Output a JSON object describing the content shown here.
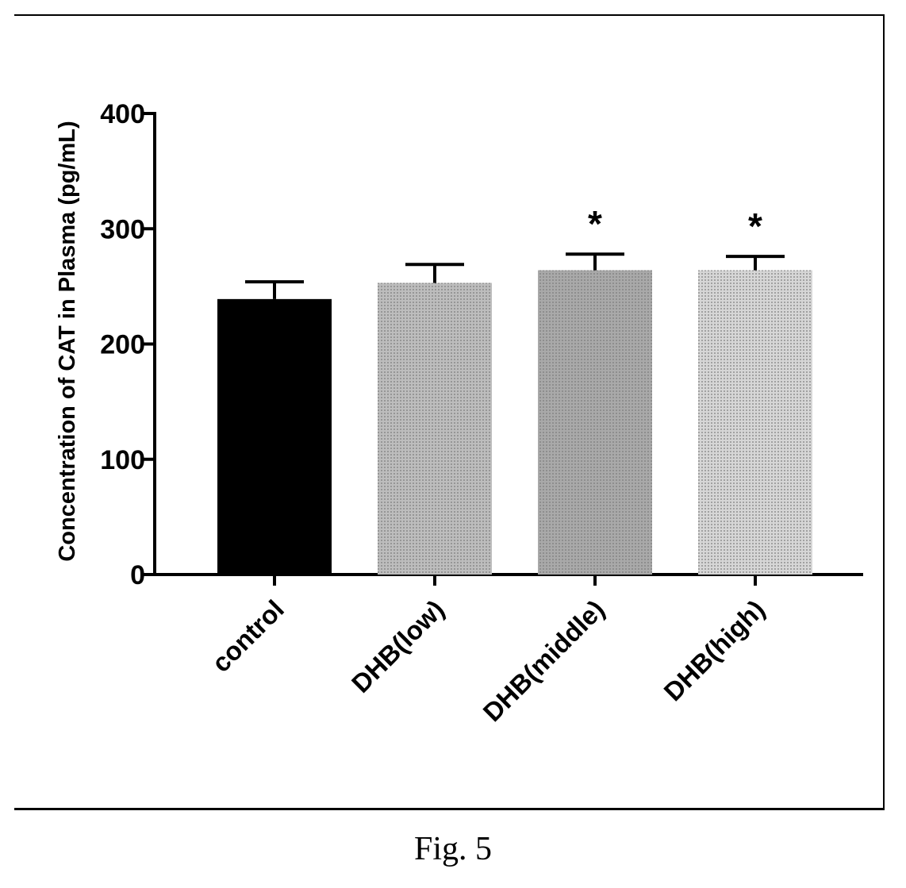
{
  "figure_caption": "Fig. 5",
  "chart_data": {
    "type": "bar",
    "categories": [
      "control",
      "DHB(low)",
      "DHB(middle)",
      "DHB(high)"
    ],
    "values": [
      239,
      253,
      264,
      264
    ],
    "error": [
      15,
      16,
      14,
      12
    ],
    "significance": [
      "",
      "",
      "*",
      "*"
    ],
    "ylabel": "Concentration of CAT in Plasma (pg/mL)",
    "xlabel": "",
    "ylim": [
      0,
      400
    ],
    "yticks": [
      0,
      100,
      200,
      300,
      400
    ],
    "bar_fills": [
      "#000000",
      "#bdbdbd",
      "#a9a9a9",
      "#d6d6d6"
    ],
    "grid": false,
    "legend": "none"
  }
}
